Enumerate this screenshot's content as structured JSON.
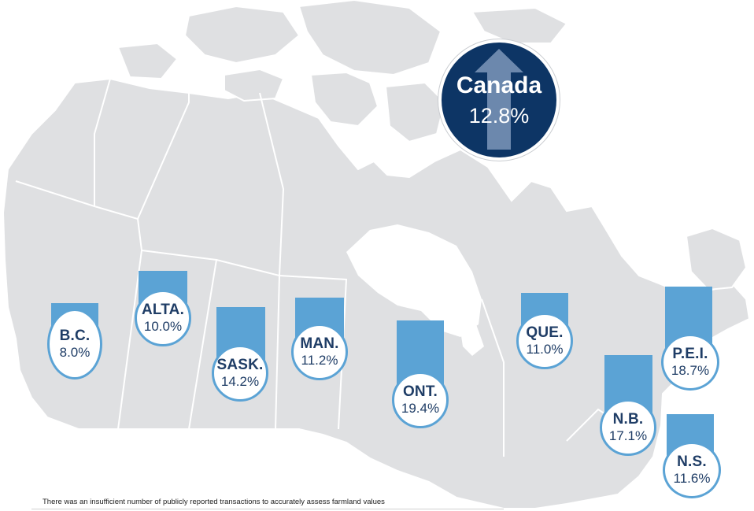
{
  "colors": {
    "land": "#dfe0e2",
    "border": "#ffffff",
    "bar": "#5ba3d5",
    "bubble_text": "#1f3d66",
    "national_bubble": "#0d3565"
  },
  "national": {
    "label": "Canada",
    "value": "12.8%",
    "trend_icon": "up-arrow-icon"
  },
  "provinces": [
    {
      "id": "bc",
      "label": "B.C.",
      "value": "8.0%"
    },
    {
      "id": "alta",
      "label": "ALTA.",
      "value": "10.0%"
    },
    {
      "id": "sask",
      "label": "SASK.",
      "value": "14.2%"
    },
    {
      "id": "man",
      "label": "MAN.",
      "value": "11.2%"
    },
    {
      "id": "ont",
      "label": "ONT.",
      "value": "19.4%"
    },
    {
      "id": "que",
      "label": "QUE.",
      "value": "11.0%"
    },
    {
      "id": "nb",
      "label": "N.B.",
      "value": "17.1%"
    },
    {
      "id": "pei",
      "label": "P.E.I.",
      "value": "18.7%"
    },
    {
      "id": "ns",
      "label": "N.S.",
      "value": "11.6%"
    }
  ],
  "footnote": "There was an insufficient number of publicly reported transactions to accurately assess farmland values"
}
